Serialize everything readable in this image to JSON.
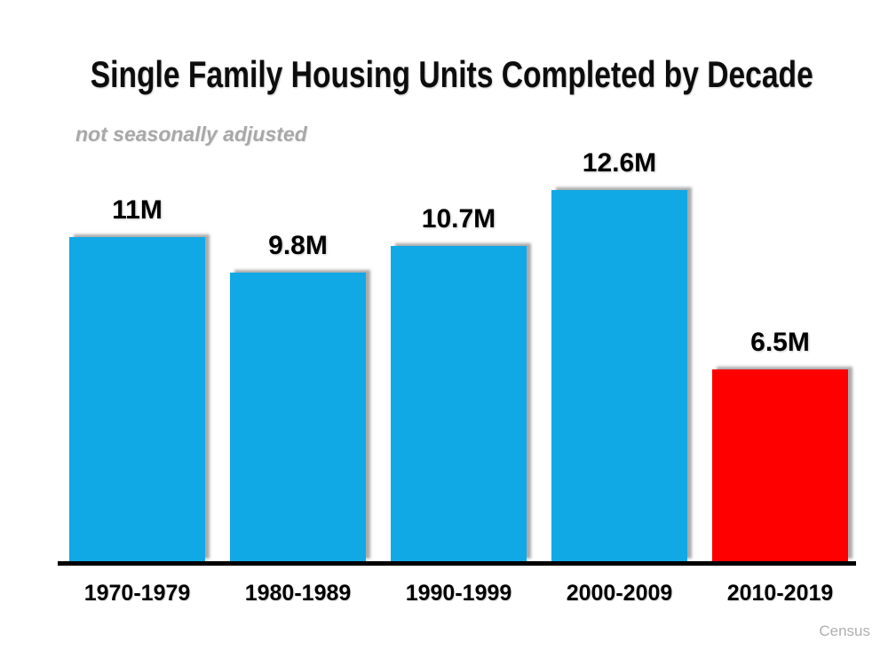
{
  "chart_data": {
    "type": "bar",
    "title": "Single Family Housing Units Completed by Decade",
    "subtitle": "not seasonally adjusted",
    "categories": [
      "1970-1979",
      "1980-1989",
      "1990-1999",
      "2000-2009",
      "2010-2019"
    ],
    "values": [
      11,
      9.8,
      10.7,
      12.6,
      6.5
    ],
    "value_labels": [
      "11M",
      "9.8M",
      "10.7M",
      "12.6M",
      "6.5M"
    ],
    "unit": "millions of housing units",
    "series_name": "Single Family Housing Units Completed",
    "bar_colors": [
      "#11A8E6",
      "#11A8E6",
      "#11A8E6",
      "#11A8E6",
      "#FF0000"
    ],
    "ylim": [
      0,
      14
    ],
    "grid": false,
    "legend": "none",
    "source": "Census"
  },
  "colors": {
    "bar_blue": "#11A8E6",
    "bar_red": "#FF0000",
    "axis_black": "#000000",
    "subtitle_gray": "#a8a8a8",
    "source_gray": "#b0b0b0",
    "background": "#ffffff"
  }
}
